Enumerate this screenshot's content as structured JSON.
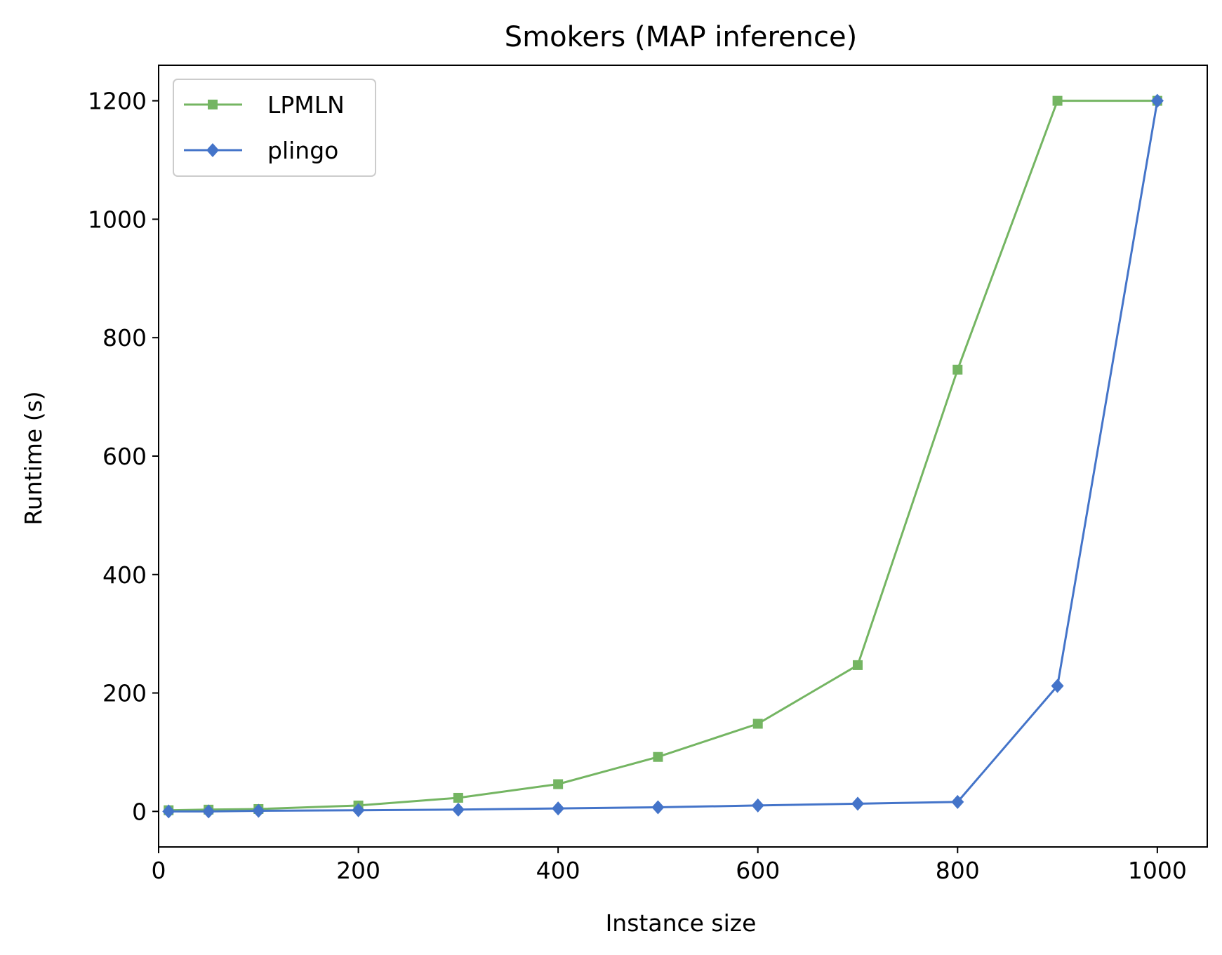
{
  "chart_data": {
    "type": "line",
    "title": "Smokers (MAP inference)",
    "xlabel": "Instance size",
    "ylabel": "Runtime (s)",
    "xlim": [
      0,
      1050
    ],
    "ylim": [
      -60,
      1260
    ],
    "xticks": [
      0,
      200,
      400,
      600,
      800,
      1000
    ],
    "yticks": [
      0,
      200,
      400,
      600,
      800,
      1000,
      1200
    ],
    "grid": false,
    "legend_position": "top-left",
    "series": [
      {
        "name": "LPMLN",
        "color": "#74b562",
        "marker": "square",
        "x": [
          10,
          50,
          100,
          200,
          300,
          400,
          500,
          600,
          700,
          800,
          900,
          1000
        ],
        "y": [
          2,
          3,
          4,
          10,
          23,
          46,
          92,
          148,
          247,
          746,
          1200,
          1200
        ]
      },
      {
        "name": "plingo",
        "color": "#4474c9",
        "marker": "diamond",
        "x": [
          10,
          50,
          100,
          200,
          300,
          400,
          500,
          600,
          700,
          800,
          900,
          1000
        ],
        "y": [
          0,
          0,
          1,
          2,
          3,
          5,
          7,
          10,
          13,
          16,
          212,
          1200
        ]
      }
    ]
  }
}
